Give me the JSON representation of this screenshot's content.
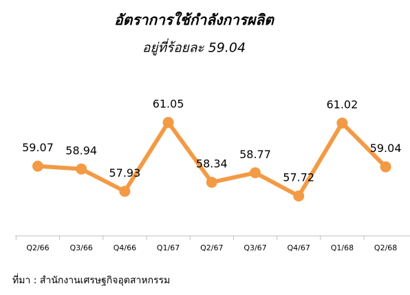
{
  "chart_data": {
    "type": "line",
    "title": "อัตราการใช้กำลังการผลิต",
    "subtitle": "อยู่ที่ร้อยละ 59.04",
    "categories": [
      "Q2/66",
      "Q3/66",
      "Q4/66",
      "Q1/67",
      "Q2/67",
      "Q3/67",
      "Q4/67",
      "Q1/68",
      "Q2/68"
    ],
    "values": [
      59.07,
      58.94,
      57.93,
      61.05,
      58.34,
      58.77,
      57.72,
      61.02,
      59.04
    ],
    "color": "#f39a45",
    "source": "ที่มา : สำนักงานเศรษฐกิจอุตสาหกรรม"
  }
}
